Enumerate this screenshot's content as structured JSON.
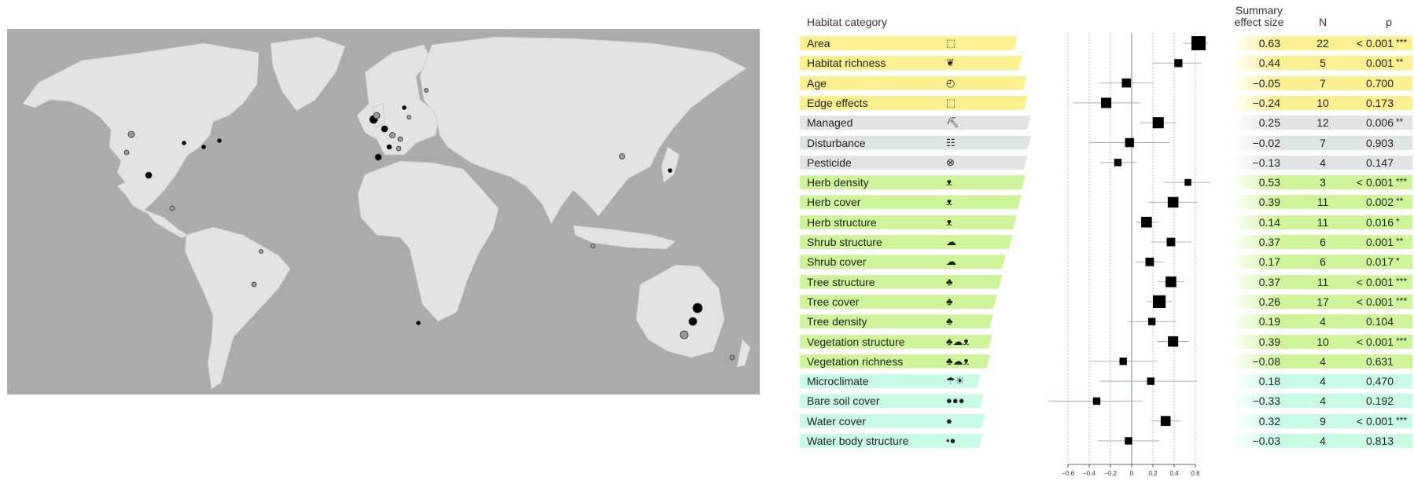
{
  "chart_data": [
    {
      "type": "map",
      "title": "",
      "legend": []
    },
    {
      "type": "forest",
      "headers": {
        "category": "Habitat category",
        "effect_line1": "Summary",
        "effect_line2": "effect size",
        "n": "N",
        "p": "p"
      },
      "xlim": [
        -0.6,
        0.6
      ],
      "xticks": [
        "−0.6",
        "−0.4",
        "−0.2",
        "0",
        "0.2",
        "0.4",
        "0.6"
      ],
      "xtick_values": [
        -0.6,
        -0.4,
        -0.2,
        0,
        0.2,
        0.4,
        0.6
      ],
      "group_colors": {
        "area": "#fbef8f",
        "management": "#dfe5e2",
        "vegetation": "#cff59a",
        "abiotic": "#c7fbe6"
      },
      "rows": [
        {
          "label": "Area",
          "group": "area",
          "icon": "dashed-square-icon",
          "glyph": "⬚",
          "effect": 0.63,
          "effect_text": "0.63",
          "ci": [
            0.48,
            0.72
          ],
          "n": 22,
          "n_text": "22",
          "p": "< 0.001",
          "stars": "***"
        },
        {
          "label": "Habitat richness",
          "group": "area",
          "icon": "leaf-icon",
          "glyph": "❦",
          "effect": 0.44,
          "effect_text": "0.44",
          "ci": [
            0.2,
            0.66
          ],
          "n": 5,
          "n_text": "5",
          "p": "0.001",
          "stars": "**"
        },
        {
          "label": "Age",
          "group": "area",
          "icon": "clock-icon",
          "glyph": "◴",
          "effect": -0.05,
          "effect_text": "−0.05",
          "ci": [
            -0.3,
            0.2
          ],
          "n": 7,
          "n_text": "7",
          "p": "0.700",
          "stars": ""
        },
        {
          "label": "Edge effects",
          "group": "area",
          "icon": "edge-icon",
          "glyph": "⬚",
          "effect": -0.24,
          "effect_text": "−0.24",
          "ci": [
            -0.55,
            0.08
          ],
          "n": 10,
          "n_text": "10",
          "p": "0.173",
          "stars": ""
        },
        {
          "label": "Managed",
          "group": "management",
          "icon": "mower-icon",
          "glyph": "⛏",
          "effect": 0.25,
          "effect_text": "0.25",
          "ci": [
            0.08,
            0.42
          ],
          "n": 12,
          "n_text": "12",
          "p": "0.006",
          "stars": "**"
        },
        {
          "label": "Disturbance",
          "group": "management",
          "icon": "people-icon",
          "glyph": "☷",
          "effect": -0.02,
          "effect_text": "−0.02",
          "ci": [
            -0.4,
            0.36
          ],
          "n": 7,
          "n_text": "7",
          "p": "0.903",
          "stars": ""
        },
        {
          "label": "Pesticide",
          "group": "management",
          "icon": "pesticide-icon",
          "glyph": "⊗",
          "effect": -0.13,
          "effect_text": "−0.13",
          "ci": [
            -0.3,
            0.05
          ],
          "n": 4,
          "n_text": "4",
          "p": "0.147",
          "stars": ""
        },
        {
          "label": "Herb density",
          "group": "vegetation",
          "icon": "herb-icon",
          "glyph": "ᴥ",
          "effect": 0.53,
          "effect_text": "0.53",
          "ci": [
            0.3,
            0.74
          ],
          "n": 3,
          "n_text": "3",
          "p": "< 0.001",
          "stars": "***"
        },
        {
          "label": "Herb cover",
          "group": "vegetation",
          "icon": "herb-icon",
          "glyph": "ᴥ",
          "effect": 0.39,
          "effect_text": "0.39",
          "ci": [
            0.16,
            0.62
          ],
          "n": 11,
          "n_text": "11",
          "p": "0.002",
          "stars": "**"
        },
        {
          "label": "Herb structure",
          "group": "vegetation",
          "icon": "herb-icon",
          "glyph": "ᴥ",
          "effect": 0.14,
          "effect_text": "0.14",
          "ci": [
            0.04,
            0.25
          ],
          "n": 11,
          "n_text": "11",
          "p": "0.016",
          "stars": "*"
        },
        {
          "label": "Shrub structure",
          "group": "vegetation",
          "icon": "shrub-icon",
          "glyph": "☁",
          "effect": 0.37,
          "effect_text": "0.37",
          "ci": [
            0.18,
            0.56
          ],
          "n": 6,
          "n_text": "6",
          "p": "0.001",
          "stars": "**"
        },
        {
          "label": "Shrub cover",
          "group": "vegetation",
          "icon": "shrub-icon",
          "glyph": "☁",
          "effect": 0.17,
          "effect_text": "0.17",
          "ci": [
            0.04,
            0.3
          ],
          "n": 6,
          "n_text": "6",
          "p": "0.017",
          "stars": "*"
        },
        {
          "label": "Tree structure",
          "group": "vegetation",
          "icon": "tree-icon",
          "glyph": "♣",
          "effect": 0.37,
          "effect_text": "0.37",
          "ci": [
            0.24,
            0.5
          ],
          "n": 11,
          "n_text": "11",
          "p": "< 0.001",
          "stars": "***"
        },
        {
          "label": "Tree cover",
          "group": "vegetation",
          "icon": "tree-icon",
          "glyph": "♣",
          "effect": 0.26,
          "effect_text": "0.26",
          "ci": [
            0.14,
            0.38
          ],
          "n": 17,
          "n_text": "17",
          "p": "< 0.001",
          "stars": "***"
        },
        {
          "label": "Tree density",
          "group": "vegetation",
          "icon": "tree-icon",
          "glyph": "♣",
          "effect": 0.19,
          "effect_text": "0.19",
          "ci": [
            -0.04,
            0.42
          ],
          "n": 4,
          "n_text": "4",
          "p": "0.104",
          "stars": ""
        },
        {
          "label": "Vegetation structure",
          "group": "vegetation",
          "icon": "vegetation-icon",
          "glyph": "♣☁ᴥ",
          "effect": 0.39,
          "effect_text": "0.39",
          "ci": [
            0.24,
            0.54
          ],
          "n": 10,
          "n_text": "10",
          "p": "< 0.001",
          "stars": "***"
        },
        {
          "label": "Vegetation richness",
          "group": "vegetation",
          "icon": "vegetation-icon",
          "glyph": "♣☁ᴥ",
          "effect": -0.08,
          "effect_text": "−0.08",
          "ci": [
            -0.4,
            0.24
          ],
          "n": 4,
          "n_text": "4",
          "p": "0.631",
          "stars": ""
        },
        {
          "label": "Microclimate",
          "group": "abiotic",
          "icon": "weather-icon",
          "glyph": "☂☀",
          "effect": 0.18,
          "effect_text": "0.18",
          "ci": [
            -0.3,
            0.62
          ],
          "n": 4,
          "n_text": "4",
          "p": "0.470",
          "stars": ""
        },
        {
          "label": "Bare soil cover",
          "group": "abiotic",
          "icon": "soil-icon",
          "glyph": "●●●",
          "effect": -0.33,
          "effect_text": "−0.33",
          "ci": [
            -0.78,
            0.1
          ],
          "n": 4,
          "n_text": "4",
          "p": "0.192",
          "stars": ""
        },
        {
          "label": "Water cover",
          "group": "abiotic",
          "icon": "water-drop-icon",
          "glyph": "●",
          "effect": 0.32,
          "effect_text": "0.32",
          "ci": [
            0.18,
            0.46
          ],
          "n": 9,
          "n_text": "9",
          "p": "< 0.001",
          "stars": "***"
        },
        {
          "label": "Water body structure",
          "group": "abiotic",
          "icon": "water-drops-icon",
          "glyph": "•●",
          "effect": -0.03,
          "effect_text": "−0.03",
          "ci": [
            -0.32,
            0.26
          ],
          "n": 4,
          "n_text": "4",
          "p": "0.813",
          "stars": ""
        }
      ]
    }
  ]
}
